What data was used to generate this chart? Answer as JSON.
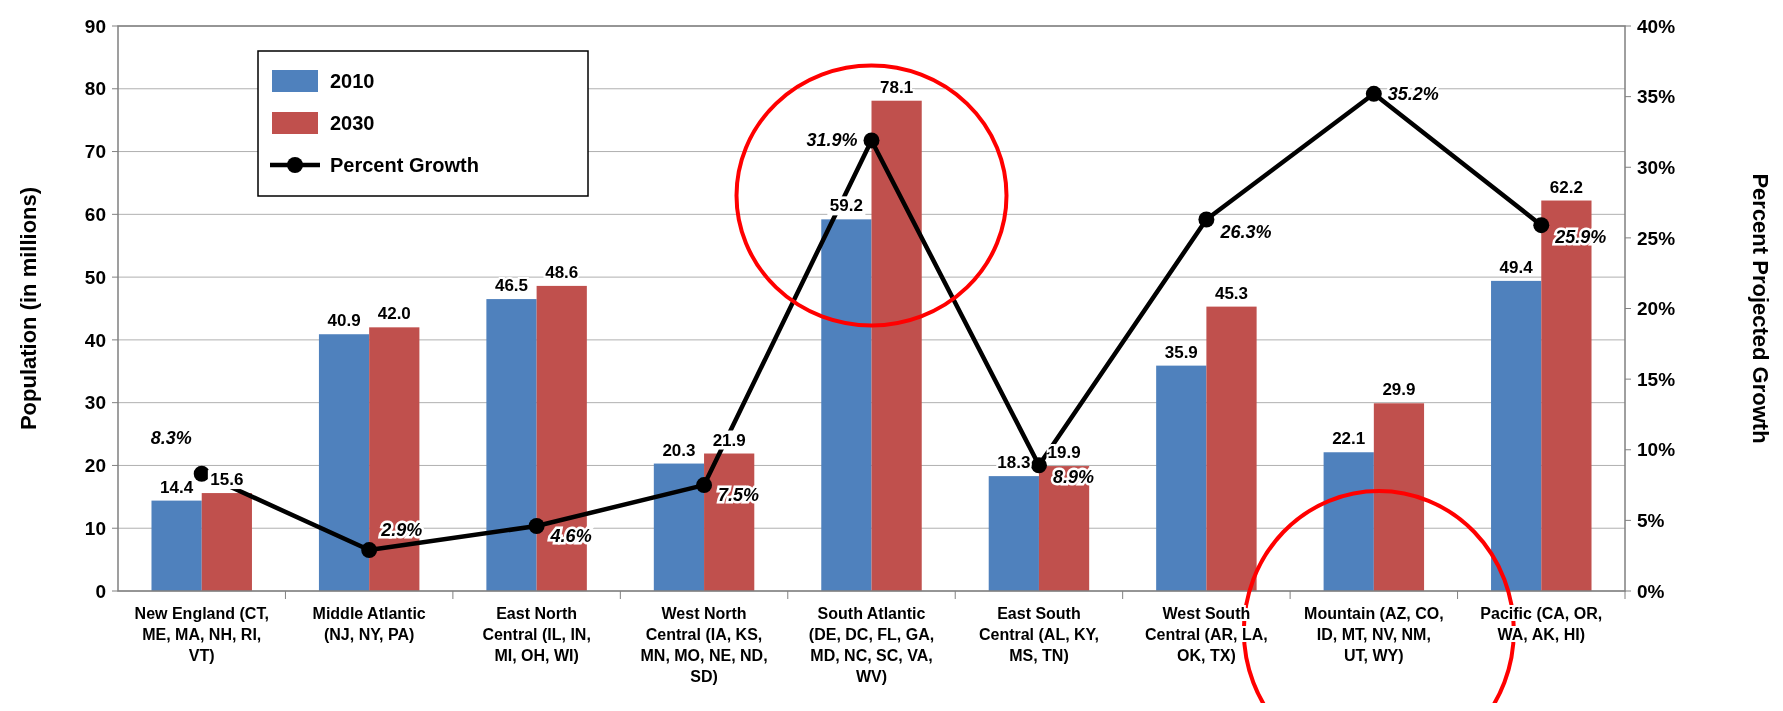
{
  "chart_data": {
    "type": "bar",
    "ylabel": "Population (in millions)",
    "y2label": "Percent Projected Growth",
    "categories": [
      "New England (CT, ME, MA, NH, RI, VT)",
      "Middle Atlantic (NJ, NY, PA)",
      "East North Central (IL, IN, MI, OH, WI)",
      "West North Central (IA, KS, MN, MO, NE, ND, SD)",
      "South Atlantic (DE, DC, FL, GA, MD, NC, SC, VA, WV)",
      "East South Central (AL, KY, MS, TN)",
      "West South Central (AR, LA, OK, TX)",
      "Mountain (AZ, CO, ID, MT, NV, NM, UT, WY)",
      "Pacific (CA, OR, WA, AK, HI)"
    ],
    "series": [
      {
        "name": "2010",
        "color": "#4f81bd",
        "values": [
          14.4,
          40.9,
          46.5,
          20.3,
          59.2,
          18.3,
          35.9,
          22.1,
          49.4
        ],
        "value_labels": [
          "14.4",
          "40.9",
          "46.5",
          "20.3",
          "59.2",
          "18.3",
          "35.9",
          "22.1",
          "49.4"
        ]
      },
      {
        "name": "2030",
        "color": "#c0504d",
        "values": [
          15.6,
          42.0,
          48.6,
          21.9,
          78.1,
          19.9,
          45.3,
          29.9,
          62.2
        ],
        "value_labels": [
          "15.6",
          "42.0",
          "48.6",
          "21.9",
          "78.1",
          "19.9",
          "45.3",
          "29.9",
          "62.2"
        ]
      },
      {
        "name": "Percent Growth",
        "type": "line",
        "axis": "y2",
        "color": "#000000",
        "values": [
          8.3,
          2.9,
          4.6,
          7.5,
          31.9,
          8.9,
          26.3,
          35.2,
          25.9
        ],
        "value_labels": [
          "8.3%",
          "2.9%",
          "4.6%",
          "7.5%",
          "31.9%",
          "8.9%",
          "26.3%",
          "35.2%",
          "25.9%"
        ]
      }
    ],
    "ylim": [
      0,
      90
    ],
    "yticks": [
      0,
      10,
      20,
      30,
      40,
      50,
      60,
      70,
      80,
      90
    ],
    "y2lim": [
      0,
      40
    ],
    "y2ticks": [
      {
        "value": 0,
        "label": "0%"
      },
      {
        "value": 5,
        "label": "5%"
      },
      {
        "value": 10,
        "label": "10%"
      },
      {
        "value": 15,
        "label": "15%"
      },
      {
        "value": 20,
        "label": "20%"
      },
      {
        "value": 25,
        "label": "25%"
      },
      {
        "value": 30,
        "label": "30%"
      },
      {
        "value": 35,
        "label": "35%"
      },
      {
        "value": 40,
        "label": "40%"
      }
    ],
    "grid": "y",
    "legend": "top left",
    "marker": "circle",
    "line_style": "solid"
  }
}
